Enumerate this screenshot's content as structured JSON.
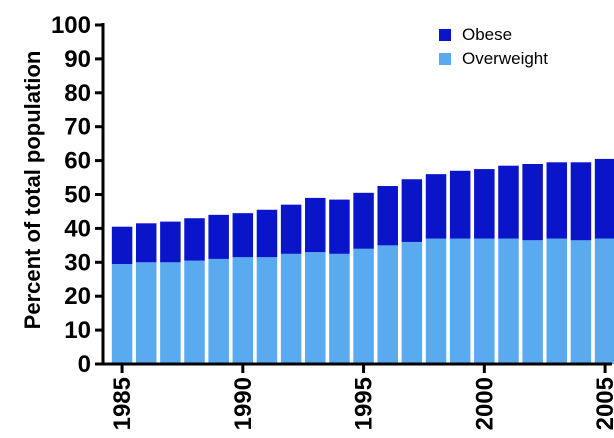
{
  "chart_data": {
    "type": "bar",
    "stacked": true,
    "categories": [
      "1985",
      "1986",
      "1987",
      "1988",
      "1989",
      "1990",
      "1991",
      "1992",
      "1993",
      "1994",
      "1995",
      "1996",
      "1997",
      "1998",
      "1999",
      "2000",
      "2001",
      "2002",
      "2003",
      "2004",
      "2005"
    ],
    "x_tick_labels": [
      "1985",
      "1990",
      "1995",
      "2000",
      "2005"
    ],
    "series": [
      {
        "name": "Overweight",
        "color": "#5aaaf0",
        "values": [
          29.5,
          30.0,
          30.0,
          30.5,
          31.0,
          31.5,
          31.5,
          32.5,
          33.0,
          32.5,
          34.0,
          35.0,
          36.0,
          37.0,
          37.0,
          37.0,
          37.0,
          36.5,
          37.0,
          36.5,
          37.0
        ]
      },
      {
        "name": "Obese",
        "color": "#0a14c8",
        "values": [
          11.0,
          11.5,
          12.0,
          12.5,
          13.0,
          13.0,
          14.0,
          14.5,
          16.0,
          16.0,
          16.5,
          17.5,
          18.5,
          19.0,
          20.0,
          20.5,
          21.5,
          22.5,
          22.5,
          23.0,
          23.5
        ]
      }
    ],
    "legend": [
      {
        "name": "Obese",
        "color": "#0a14c8"
      },
      {
        "name": "Overweight",
        "color": "#5aaaf0"
      }
    ],
    "legend_position": "top-right",
    "title": "",
    "xlabel": "",
    "ylabel": "Percent of total population",
    "ylim": [
      0,
      100
    ],
    "yticks": [
      0,
      10,
      20,
      30,
      40,
      50,
      60,
      70,
      80,
      90,
      100
    ],
    "grid": false
  }
}
